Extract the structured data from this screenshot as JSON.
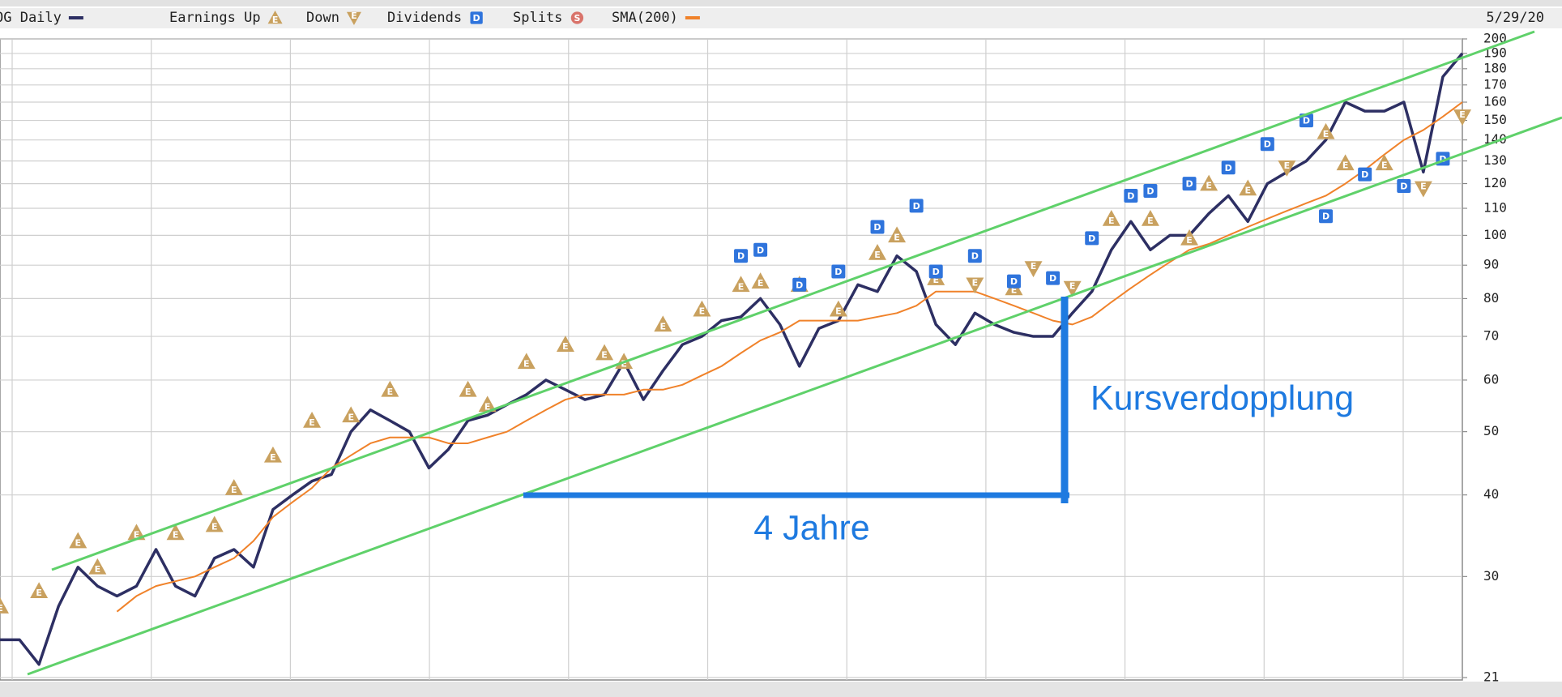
{
  "chart_data": {
    "type": "line",
    "date_label": "5/29/20",
    "annotations": [
      "Kursverdopplung",
      "4 Jahre"
    ],
    "log_y": true,
    "grid": true,
    "ylim": [
      21,
      200
    ],
    "yticks": [
      21,
      30,
      40,
      50,
      60,
      70,
      80,
      90,
      100,
      110,
      120,
      130,
      140,
      150,
      160,
      170,
      180,
      190,
      200
    ],
    "categories": [
      null,
      null,
      null,
      null,
      null,
      null,
      null,
      null,
      null,
      null,
      null,
      null,
      null,
      null,
      null,
      null,
      null,
      null,
      null,
      null,
      null,
      null,
      null,
      null,
      null,
      null,
      null,
      null,
      null,
      null,
      null,
      null,
      null,
      null,
      null,
      null,
      null,
      null,
      null,
      null,
      null,
      null,
      null,
      null,
      null,
      null,
      null,
      null,
      null,
      null,
      null,
      null,
      null,
      null,
      null,
      null,
      null,
      null,
      null,
      null,
      null,
      null,
      null,
      null,
      null,
      null,
      null,
      null,
      null,
      null,
      null,
      null,
      null,
      null,
      null,
      null
    ],
    "series": [
      {
        "name": "OG Daily",
        "style": "line",
        "color": "#2d2f63",
        "values": [
          24,
          24,
          22,
          27,
          31,
          29,
          28,
          29,
          33,
          29,
          28,
          32,
          33,
          31,
          38,
          40,
          42,
          43,
          50,
          54,
          52,
          50,
          44,
          47,
          52,
          53,
          55,
          57,
          60,
          58,
          56,
          57,
          64,
          56,
          62,
          68,
          70,
          74,
          75,
          80,
          73,
          63,
          72,
          74,
          84,
          82,
          93,
          88,
          73,
          68,
          76,
          73,
          71,
          70,
          70,
          76,
          82,
          95,
          105,
          95,
          100,
          100,
          108,
          115,
          105,
          120,
          125,
          130,
          140,
          160,
          155,
          155,
          160,
          125,
          175,
          190
        ]
      },
      {
        "name": "Earnings Up",
        "style": "triangle-up",
        "symbol": "E",
        "color": "#c9a15f",
        "values": [
          27,
          null,
          28.5,
          null,
          34,
          31,
          null,
          35,
          null,
          35,
          null,
          36,
          41,
          null,
          46,
          null,
          52,
          null,
          53,
          null,
          58,
          null,
          null,
          null,
          58,
          55,
          null,
          64,
          null,
          68,
          null,
          66,
          64,
          null,
          73,
          null,
          77,
          null,
          84,
          85,
          null,
          84,
          null,
          77,
          null,
          94,
          100,
          null,
          86,
          null,
          null,
          null,
          83,
          null,
          null,
          null,
          null,
          106,
          null,
          106,
          null,
          99,
          120,
          null,
          118,
          null,
          null,
          null,
          144,
          129,
          null,
          129,
          null,
          null,
          null,
          null
        ]
      },
      {
        "name": "Down",
        "style": "triangle-down",
        "symbol": "E",
        "color": "#c9a15f",
        "values": [
          null,
          null,
          null,
          null,
          null,
          null,
          null,
          null,
          null,
          null,
          null,
          null,
          null,
          null,
          null,
          null,
          null,
          null,
          null,
          null,
          null,
          null,
          null,
          null,
          null,
          null,
          null,
          null,
          null,
          null,
          null,
          null,
          null,
          null,
          null,
          null,
          null,
          null,
          null,
          null,
          null,
          null,
          null,
          null,
          null,
          null,
          null,
          null,
          null,
          null,
          84,
          null,
          null,
          89,
          null,
          83,
          null,
          null,
          null,
          null,
          null,
          null,
          null,
          null,
          null,
          null,
          127,
          null,
          null,
          null,
          null,
          null,
          null,
          118,
          null,
          152
        ]
      },
      {
        "name": "Dividends",
        "style": "square",
        "symbol": "D",
        "color": "#2f74dc",
        "values": [
          null,
          null,
          null,
          null,
          null,
          null,
          null,
          null,
          null,
          null,
          null,
          null,
          null,
          null,
          null,
          null,
          null,
          null,
          null,
          null,
          null,
          null,
          null,
          null,
          null,
          null,
          null,
          null,
          null,
          null,
          null,
          null,
          null,
          null,
          null,
          null,
          null,
          null,
          93,
          95,
          null,
          84,
          null,
          88,
          null,
          103,
          null,
          111,
          88,
          null,
          93,
          null,
          85,
          null,
          86,
          null,
          99,
          null,
          115,
          117,
          null,
          120,
          null,
          127,
          null,
          138,
          null,
          150,
          107,
          null,
          124,
          null,
          119,
          null,
          131,
          null
        ]
      },
      {
        "name": "Splits",
        "style": "circle",
        "symbol": "S",
        "color": "#d9736a",
        "values": [
          null,
          null,
          null,
          null,
          null,
          null,
          null,
          null,
          null,
          null,
          null,
          null,
          null,
          null,
          null,
          null,
          null,
          null,
          null,
          null,
          null,
          null,
          null,
          null,
          null,
          null,
          null,
          null,
          null,
          null,
          null,
          null,
          null,
          null,
          null,
          null,
          null,
          null,
          null,
          null,
          null,
          null,
          null,
          null,
          null,
          null,
          null,
          null,
          null,
          null,
          null,
          null,
          null,
          null,
          null,
          null,
          null,
          null,
          null,
          null,
          null,
          null,
          null,
          null,
          null,
          null,
          null,
          null,
          null,
          null,
          null,
          null,
          null,
          null,
          null,
          null
        ]
      },
      {
        "name": "SMA(200)",
        "style": "line",
        "color": "#f0822a",
        "values": [
          null,
          null,
          null,
          null,
          null,
          null,
          26.5,
          28,
          29,
          29.5,
          30,
          31,
          32,
          34,
          37,
          39,
          41,
          44,
          46,
          48,
          49,
          49,
          49,
          48,
          48,
          49,
          50,
          52,
          54,
          56,
          57,
          57,
          57,
          58,
          58,
          59,
          61,
          63,
          66,
          69,
          71,
          74,
          74,
          74,
          74,
          75,
          76,
          78,
          82,
          82,
          82,
          80,
          78,
          76,
          74,
          73,
          75,
          79,
          83,
          87,
          91,
          95,
          97,
          100,
          103,
          106,
          109,
          112,
          115,
          120,
          126,
          133,
          140,
          145,
          152,
          160
        ]
      }
    ]
  }
}
